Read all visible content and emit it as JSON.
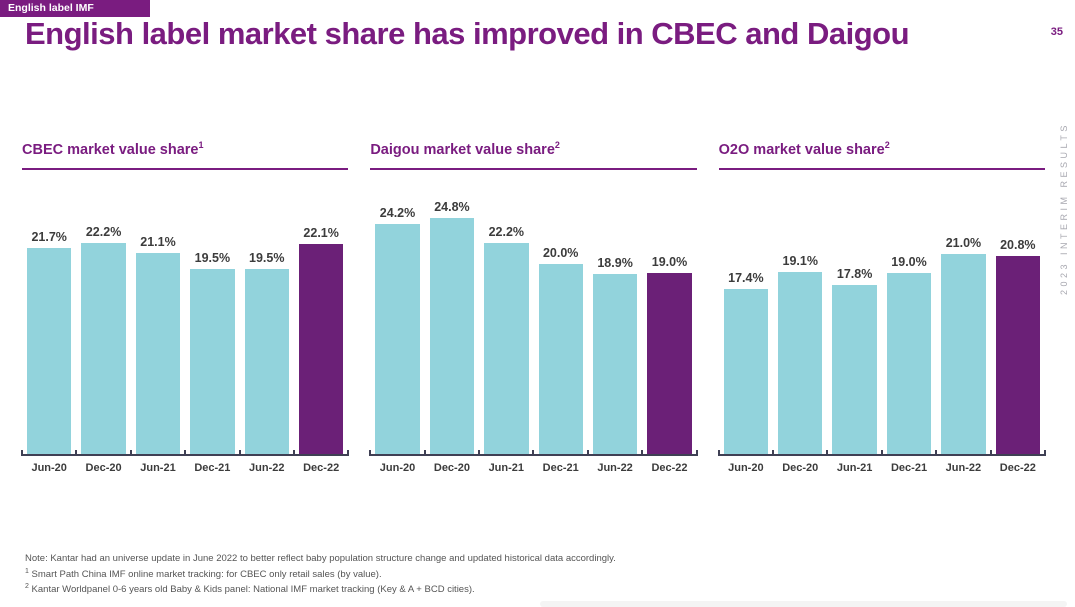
{
  "page": {
    "badge": "English label IMF",
    "title": "English label market share has improved in CBEC and Daigou",
    "page_number": "35",
    "side_text": "2023 INTERIM RESULTS"
  },
  "colors": {
    "brand_purple": "#7a1c80",
    "bar_teal": "#92d3dc",
    "bar_highlight_purple": "#6b2077",
    "axis_dark": "#3f4054",
    "label_dark": "#3c3c3c",
    "footnote_gray": "#555555",
    "side_text_gray": "#a8a8b0"
  },
  "chart_data": [
    {
      "type": "bar",
      "title": "CBEC market value share",
      "title_sup": "1",
      "categories": [
        "Jun-20",
        "Dec-20",
        "Jun-21",
        "Dec-21",
        "Jun-22",
        "Dec-22"
      ],
      "values": [
        21.7,
        22.2,
        21.1,
        19.5,
        19.5,
        22.1
      ],
      "labels": [
        "21.7%",
        "22.2%",
        "21.1%",
        "19.5%",
        "19.5%",
        "22.1%"
      ],
      "highlight_index": 5,
      "xlabel": "",
      "ylabel": "",
      "ylim": [
        0,
        26
      ],
      "grid": false,
      "legend": false
    },
    {
      "type": "bar",
      "title": "Daigou market value share",
      "title_sup": "2",
      "categories": [
        "Jun-20",
        "Dec-20",
        "Jun-21",
        "Dec-21",
        "Jun-22",
        "Dec-22"
      ],
      "values": [
        24.2,
        24.8,
        22.2,
        20.0,
        18.9,
        19.0
      ],
      "labels": [
        "24.2%",
        "24.8%",
        "22.2%",
        "20.0%",
        "18.9%",
        "19.0%"
      ],
      "highlight_index": 5,
      "xlabel": "",
      "ylabel": "",
      "ylim": [
        0,
        26
      ],
      "grid": false,
      "legend": false
    },
    {
      "type": "bar",
      "title": "O2O market value share",
      "title_sup": "2",
      "categories": [
        "Jun-20",
        "Dec-20",
        "Jun-21",
        "Dec-21",
        "Jun-22",
        "Dec-22"
      ],
      "values": [
        17.4,
        19.1,
        17.8,
        19.0,
        21.0,
        20.8
      ],
      "labels": [
        "17.4%",
        "19.1%",
        "17.8%",
        "19.0%",
        "21.0%",
        "20.8%"
      ],
      "highlight_index": 5,
      "xlabel": "",
      "ylabel": "",
      "ylim": [
        0,
        26
      ],
      "grid": false,
      "legend": false
    }
  ],
  "footer": {
    "note": "Note: Kantar had an universe update in June 2022 to better reflect baby population structure change and updated historical data accordingly.",
    "footnote1_sup": "1",
    "footnote1": " Smart Path China IMF online market tracking: for CBEC only retail sales (by value).",
    "footnote2_sup": "2",
    "footnote2": " Kantar Worldpanel 0-6 years old Baby & Kids panel: National IMF market tracking (Key & A + BCD cities)."
  }
}
